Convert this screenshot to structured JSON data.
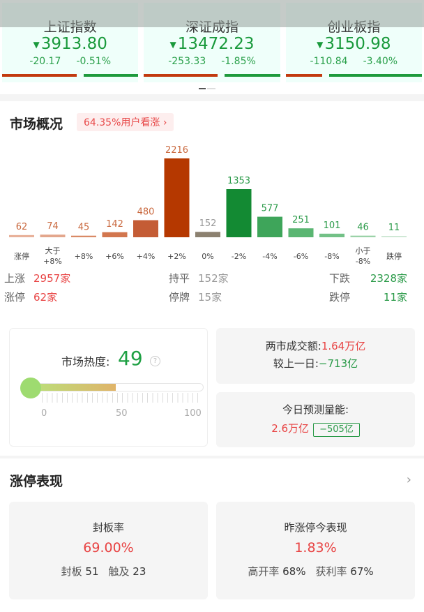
{
  "indices": [
    {
      "name": "上证指数",
      "price": "3913.80",
      "change": "-20.17",
      "pct": "-0.51%",
      "up_ratio": 0.55
    },
    {
      "name": "深证成指",
      "price": "13472.23",
      "change": "-253.33",
      "pct": "-1.85%",
      "up_ratio": 0.54
    },
    {
      "name": "创业板指",
      "price": "3150.98",
      "change": "-110.84",
      "pct": "-3.40%",
      "up_ratio": 0.27
    }
  ],
  "overview": {
    "title": "市场概况",
    "badge": "64.35%用户看涨"
  },
  "chart_data": {
    "type": "bar",
    "categories": [
      "涨停",
      "大于\n+8%",
      "+8%",
      "+6%",
      "+4%",
      "+2%",
      "0%",
      "-2%",
      "-4%",
      "-6%",
      "-8%",
      "小于\n-8%",
      "跌停"
    ],
    "values": [
      62,
      74,
      45,
      142,
      480,
      2216,
      152,
      1353,
      577,
      251,
      101,
      46,
      11
    ],
    "colors": [
      "#e8b19a",
      "#e3a68c",
      "#d98a66",
      "#d2764e",
      "#c45c35",
      "#b53800",
      "#8c8170",
      "#138a33",
      "#3ea55a",
      "#5ab672",
      "#73c187",
      "#9bd2a8",
      "#cfe8d5"
    ],
    "label_colors": [
      "#c9683e",
      "#c9683e",
      "#c9683e",
      "#c9683e",
      "#c9683e",
      "#c9683e",
      "#999999",
      "#2a9a48",
      "#2a9a48",
      "#2a9a48",
      "#2a9a48",
      "#2a9a48",
      "#2a9a48"
    ]
  },
  "stats": {
    "up": {
      "label": "上涨",
      "value": "2957家"
    },
    "flat": {
      "label": "持平",
      "value": "152家"
    },
    "down": {
      "label": "下跌",
      "value": "2328家"
    },
    "limit_up": {
      "label": "涨停",
      "value": "62家"
    },
    "suspended": {
      "label": "停牌",
      "value": "15家"
    },
    "limit_down": {
      "label": "跌停",
      "value": "11家"
    }
  },
  "heat": {
    "label": "市场热度:",
    "value": "49",
    "level": 49,
    "help": "?",
    "ticks": [
      "0",
      "50",
      "100"
    ]
  },
  "volume": {
    "label": "两市成交额:",
    "value": "1.64万亿",
    "prev_label": "较上一日:",
    "prev_value": "−713亿"
  },
  "forecast": {
    "label": "今日预测量能:",
    "value": "2.6万亿",
    "diff": "−505亿"
  },
  "limit": {
    "title": "涨停表现",
    "chevron": "›",
    "seal": {
      "title": "封板率",
      "value": "69.00%",
      "sealed_label": "封板",
      "sealed": "51",
      "touched_label": "触及",
      "touched": "23"
    },
    "yesterday": {
      "title": "昨涨停今表现",
      "value": "1.83%",
      "open_label": "高开率",
      "open": "68%",
      "profit_label": "获利率",
      "profit": "67%"
    }
  }
}
